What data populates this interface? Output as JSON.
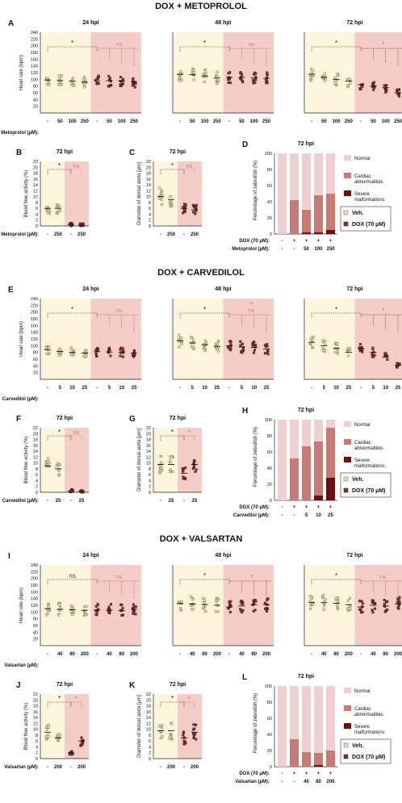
{
  "colors": {
    "veh_bg": "#fdf6dc",
    "dox_bg": "#f3cdc6",
    "veh_fill": "#efe0b8",
    "veh_stroke": "#6e5836",
    "dox_fill": "#8b3032",
    "dox_stroke": "#3e1012",
    "sig": "#c0504d",
    "ns": "#d07a76",
    "normal": "#efcfcf",
    "cardiac": "#c97a74",
    "severe": "#6b0f12"
  },
  "groups": [
    {
      "title": "DOX + METOPROLOL",
      "drug_label": "Metoprolol (µM):",
      "conc": [
        "-",
        "50",
        "100",
        "250"
      ],
      "high": "250",
      "hr": [
        {
          "label": "A",
          "time": "24 hpi",
          "means": [
            98,
            96,
            95,
            92,
            96,
            96,
            95,
            93
          ],
          "sig": "*",
          "comps": [
            "ns"
          ],
          "comp_sig": [
            false
          ],
          "comp_n": 3
        },
        {
          "time": "48 hpi",
          "means": [
            115,
            114,
            110,
            105,
            106,
            106,
            104,
            103
          ],
          "sig": "*",
          "comps": [
            "ns"
          ],
          "comp_sig": [
            false
          ],
          "comp_n": 3
        },
        {
          "time": "72 hpi",
          "means": [
            115,
            106,
            100,
            95,
            84,
            80,
            75,
            60
          ],
          "sig": "*",
          "comps": [
            "*"
          ],
          "comp_sig": [
            true
          ],
          "comp_n": 3
        }
      ],
      "bf": {
        "label": "B",
        "time": "72 hpi",
        "means": [
          6,
          6,
          0.5,
          0.3
        ],
        "ylabel": "Blood flow activity (%)",
        "max": 22,
        "sig": "*",
        "comp": "ns",
        "comp_sig": false
      },
      "da": {
        "label": "C",
        "time": "72 hpi",
        "means": [
          10,
          9,
          6,
          5.5
        ],
        "ylabel": "Diameter of dorsal aorta [µm]",
        "max": 22,
        "sig": "*",
        "comp": "ns",
        "comp_sig": false
      },
      "pct": {
        "label": "D",
        "time": "72 hpi",
        "bars": [
          {
            "cardiac": 0,
            "severe": 0
          },
          {
            "cardiac": 42,
            "severe": 0
          },
          {
            "cardiac": 28,
            "severe": 2
          },
          {
            "cardiac": 46,
            "severe": 2
          },
          {
            "cardiac": 45,
            "severe": 5
          }
        ],
        "dox": [
          "-",
          "+",
          "+",
          "+",
          "+"
        ],
        "drug": [
          "-",
          "-",
          "50",
          "100",
          "250"
        ]
      }
    },
    {
      "title": "DOX + CARVEDILOL",
      "drug_label": "Carvedilol (µM):",
      "conc": [
        "-",
        "5",
        "10",
        "25"
      ],
      "high": "25",
      "hr": [
        {
          "label": "E",
          "time": "24 hpi",
          "means": [
            88,
            83,
            80,
            78,
            82,
            81,
            80,
            78
          ],
          "sig": "*",
          "comps": [
            "ns"
          ],
          "comp_sig": [
            false
          ],
          "comp_n": 3
        },
        {
          "time": "48 hpi",
          "means": [
            115,
            108,
            103,
            98,
            100,
            96,
            95,
            90
          ],
          "sig": "*",
          "comps": [
            "ns",
            "*"
          ],
          "comp_sig": [
            false,
            true
          ],
          "comp_n": 3
        },
        {
          "time": "72 hpi",
          "means": [
            110,
            100,
            92,
            80,
            92,
            80,
            66,
            42
          ],
          "sig": "*",
          "comps": [
            "*"
          ],
          "comp_sig": [
            true
          ],
          "comp_n": 3
        }
      ],
      "bf": {
        "label": "F",
        "time": "72 hpi",
        "means": [
          9,
          8,
          0.5,
          0.3
        ],
        "ylabel": "Blood flow activity (%)",
        "max": 22,
        "sig": "*",
        "comp": "ns",
        "comp_sig": false
      },
      "da": {
        "label": "G",
        "time": "72 hpi",
        "means": [
          9.5,
          9.5,
          6.5,
          9.5
        ],
        "ylabel": "Diameter of dorsal aorta [µm]",
        "max": 22,
        "sig": "*",
        "comp": "*",
        "comp_sig": true
      },
      "pct": {
        "label": "H",
        "time": "72 hpi",
        "bars": [
          {
            "cardiac": 0,
            "severe": 0
          },
          {
            "cardiac": 52,
            "severe": 0
          },
          {
            "cardiac": 67,
            "severe": 0
          },
          {
            "cardiac": 67,
            "severe": 6
          },
          {
            "cardiac": 62,
            "severe": 28
          }
        ],
        "dox": [
          "-",
          "+",
          "+",
          "+",
          "+"
        ],
        "drug": [
          "-",
          "-",
          "5",
          "10",
          "25"
        ]
      }
    },
    {
      "title": "DOX + VALSARTAN",
      "drug_label": "Valsartan (µM):",
      "conc": [
        "-",
        "40",
        "80",
        "200"
      ],
      "high": "200",
      "hr": [
        {
          "label": "I",
          "time": "24 hpi",
          "means": [
            110,
            108,
            107,
            105,
            106,
            105,
            104,
            108
          ],
          "sig": "ns",
          "comps": [
            "ns"
          ],
          "comp_sig": [
            false
          ],
          "comp_n": 3
        },
        {
          "time": "48 hpi",
          "means": [
            125,
            124,
            122,
            120,
            115,
            118,
            122,
            122
          ],
          "sig": "*",
          "comps": [
            "*"
          ],
          "comp_sig": [
            true
          ],
          "comp_n": 3
        },
        {
          "time": "72 hpi",
          "means": [
            128,
            128,
            126,
            122,
            115,
            120,
            118,
            124
          ],
          "sig": "*",
          "comps": [
            "ns"
          ],
          "comp_sig": [
            false
          ],
          "comp_n": 3
        }
      ],
      "bf": {
        "label": "J",
        "time": "72 hpi",
        "means": [
          9,
          7,
          2,
          6
        ],
        "ylabel": "Blood flow activity (%)",
        "max": 22,
        "sig": "*",
        "comp": "*",
        "comp_sig": true
      },
      "da": {
        "label": "K",
        "time": "72 hpi",
        "means": [
          9.5,
          9.5,
          7,
          9
        ],
        "ylabel": "Diameter of dorsal aorta [µm]",
        "max": 22,
        "sig": "*",
        "comp": "*",
        "comp_sig": true
      },
      "pct": {
        "label": "L",
        "time": "72 hpi",
        "bars": [
          {
            "cardiac": 0,
            "severe": 0
          },
          {
            "cardiac": 34,
            "severe": 0
          },
          {
            "cardiac": 18,
            "severe": 0
          },
          {
            "cardiac": 15,
            "severe": 2
          },
          {
            "cardiac": 20,
            "severe": 0
          }
        ],
        "dox": [
          "-",
          "+",
          "+",
          "+",
          "+"
        ],
        "drug": [
          "-",
          "-",
          "40",
          "80",
          "200"
        ]
      }
    }
  ],
  "text": {
    "hr_ylabel": "Heart rate (bpm)",
    "pct_ylabel": "Percentage of zebrafish (%)",
    "normal": "Normal",
    "cardiac": "Cardiac abnormalities",
    "severe": "Severe malformations",
    "veh": "Veh.",
    "dox": "DOX (70 µM)",
    "dox_row": "DOX (70 µM):",
    "dox_row_alt": "DOX (70 μM):"
  },
  "chart_data": [
    {
      "type": "scatter",
      "title": "DOX + METOPROLOL — Heart rate",
      "panels": [
        "A 24 hpi",
        "A 48 hpi",
        "A 72 hpi"
      ],
      "ylabel": "Heart rate (bpm)",
      "ylim": [
        0,
        240
      ]
    },
    {
      "type": "scatter",
      "panel": "B",
      "ylabel": "Blood flow activity (%)",
      "ylim": [
        0,
        22
      ]
    },
    {
      "type": "scatter",
      "panel": "C",
      "ylabel": "Diameter of dorsal aorta [µm]",
      "ylim": [
        0,
        22
      ]
    },
    {
      "type": "bar",
      "panel": "D",
      "ylabel": "Percentage of zebrafish (%)",
      "ylim": [
        0,
        100
      ]
    }
  ]
}
